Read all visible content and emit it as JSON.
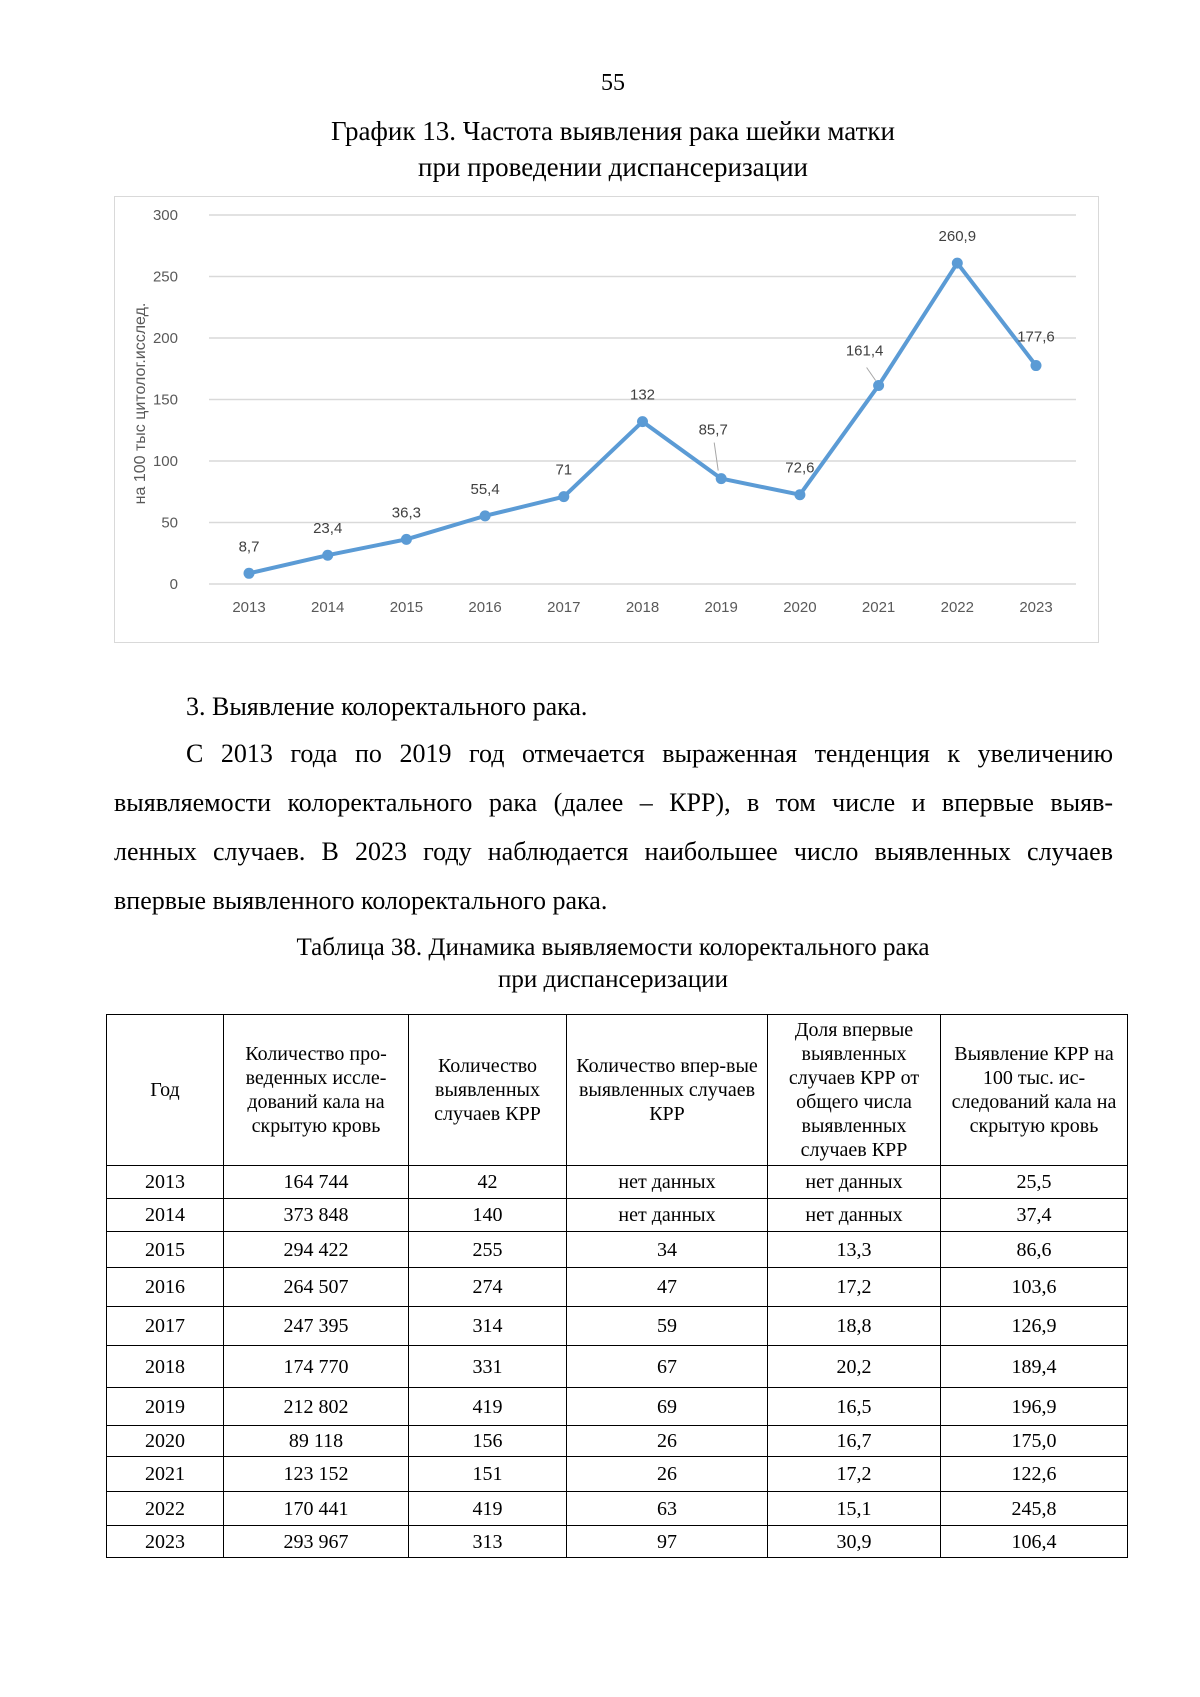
{
  "page_number": "55",
  "chart_title": [
    "График 13. Частота выявления рака шейки матки",
    "при проведении диспансеризации"
  ],
  "chart_data": {
    "type": "line",
    "title": "График 13. Частота выявления рака шейки матки при проведении диспансеризации",
    "ylabel": "на 100 тыс цитолог.исслед.",
    "xlabel": "",
    "categories": [
      "2013",
      "2014",
      "2015",
      "2016",
      "2017",
      "2018",
      "2019",
      "2020",
      "2021",
      "2022",
      "2023"
    ],
    "values": [
      8.7,
      23.4,
      36.3,
      55.4,
      71,
      132,
      85.7,
      72.6,
      161.4,
      260.9,
      177.6
    ],
    "data_labels": [
      "8,7",
      "23,4",
      "36,3",
      "55,4",
      "71",
      "132",
      "85,7",
      "72,6",
      "161,4",
      "260,9",
      "177,6"
    ],
    "ylim": [
      0,
      300
    ],
    "yticks": [
      "0",
      "50",
      "100",
      "150",
      "200",
      "250",
      "300"
    ],
    "grid": true,
    "legend": "none",
    "line_color": "#5b9bd5"
  },
  "section_heading": "3. Выявление колоректального рака.",
  "paragraph_lines": [
    "С 2013 года по 2019 год отмечается выраженная тенденция к увеличению",
    "выявляемости колоректального рака (далее – КРР), в том числе и впервые выяв-",
    "ленных случаев. В 2023 году наблюдается наибольшее число выявленных случаев",
    "впервые выявленного колоректального рака."
  ],
  "table_caption": [
    "Таблица 38. Динамика выявляемости колоректального рака",
    "при диспансеризации"
  ],
  "table": {
    "headers": [
      "Год",
      "Количество про-веденных иссле-дований кала на скрытую кровь",
      "Количество выявленных случаев КРР",
      "Количество впер-вые выявленных случаев КРР",
      "Доля впервые выявленных случаев КРР от общего числа выявленных случаев КРР",
      "Выявление КРР на 100 тыс. ис-следований кала на скрытую кровь"
    ],
    "rows": [
      [
        "2013",
        "164 744",
        "42",
        "нет данных",
        "нет данных",
        "25,5"
      ],
      [
        "2014",
        "373 848",
        "140",
        "нет данных",
        "нет данных",
        "37,4"
      ],
      [
        "2015",
        "294 422",
        "255",
        "34",
        "13,3",
        "86,6"
      ],
      [
        "2016",
        "264 507",
        "274",
        "47",
        "17,2",
        "103,6"
      ],
      [
        "2017",
        "247 395",
        "314",
        "59",
        "18,8",
        "126,9"
      ],
      [
        "2018",
        "174 770",
        "331",
        "67",
        "20,2",
        "189,4"
      ],
      [
        "2019",
        "212 802",
        "419",
        "69",
        "16,5",
        "196,9"
      ],
      [
        "2020",
        "89 118",
        "156",
        "26",
        "16,7",
        "175,0"
      ],
      [
        "2021",
        "123 152",
        "151",
        "26",
        "17,2",
        "122,6"
      ],
      [
        "2022",
        "170 441",
        "419",
        "63",
        "15,1",
        "245,8"
      ],
      [
        "2023",
        "293 967",
        "313",
        "97",
        "30,9",
        "106,4"
      ]
    ]
  }
}
